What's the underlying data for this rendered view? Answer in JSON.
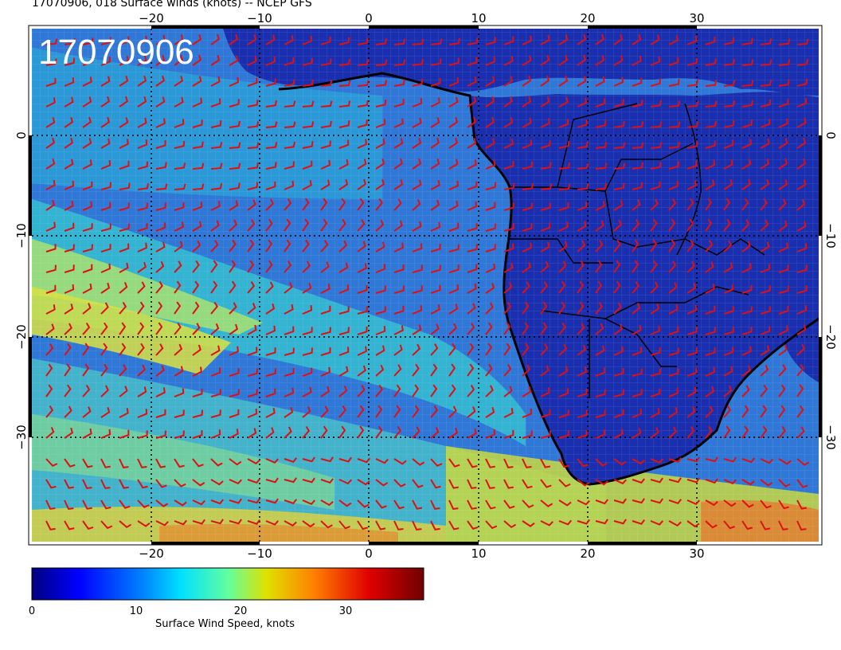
{
  "header": {
    "title": "17070906, 018 Surface winds (knots) -- NCEP GFS",
    "stamp": "17070906"
  },
  "map": {
    "lon_ticks_top": [
      "−20",
      "−10",
      "0",
      "10",
      "20",
      "30"
    ],
    "lon_ticks_bottom": [
      "−20",
      "−10",
      "0",
      "10",
      "20",
      "30"
    ],
    "lat_ticks_left": [
      "0",
      "−10",
      "−20",
      "−30"
    ],
    "lat_ticks_right": [
      "0",
      "−10",
      "−20",
      "−30"
    ],
    "barb_color": "#e01010",
    "land_color": "#1a2fb0",
    "ocean_color": "#2f78d8"
  },
  "colorbar": {
    "label": "Surface Wind Speed, knots",
    "ticks": [
      "0",
      "10",
      "20",
      "30"
    ],
    "colors": [
      "#00007f",
      "#0000ff",
      "#007fff",
      "#00ffff",
      "#7fff7f",
      "#ffff00",
      "#ff7f00",
      "#ff0000",
      "#7f0000"
    ]
  }
}
